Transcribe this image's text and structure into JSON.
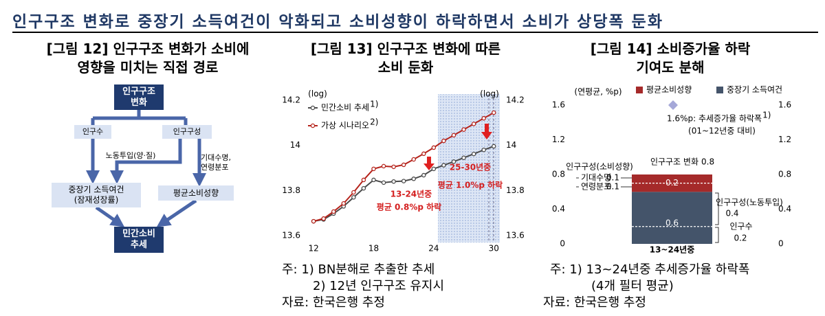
{
  "header": {
    "title": "인구구조 변화로 중장기 소득여건이 악화되고 소비성향이 하락하면서 소비가 상당폭 둔화"
  },
  "diagram": {
    "title": "[그림 12] 인구구조 변화가 소비에\n영향을 미치는 직접 경로",
    "nodes": [
      {
        "label": "인구구조\n변화"
      },
      {
        "label": "인구수"
      },
      {
        "label": "인구구성"
      },
      {
        "label": "노동투입(양·질)"
      },
      {
        "label": "기대수명,\n연령분포"
      },
      {
        "label": "중장기 소득여건\n(잠재성장률)"
      },
      {
        "label": "평균소비성향"
      },
      {
        "label": "민간소비\n추세"
      }
    ]
  },
  "chart_data": [
    {
      "type": "line",
      "title": "[그림 13] 인구구조 변화에 따른\n소비 둔화",
      "y_label": "(log)",
      "y2_label": "(log)",
      "x": [
        12,
        13,
        14,
        15,
        16,
        17,
        18,
        19,
        20,
        21,
        22,
        23,
        24,
        25,
        26,
        27,
        28,
        29,
        30
      ],
      "xlim": [
        11.1,
        30.6
      ],
      "xticks": [
        12,
        18,
        24,
        30
      ],
      "ylim": [
        13.57,
        14.23
      ],
      "yticks": [
        13.6,
        13.8,
        14,
        14.2
      ],
      "y2lim": [
        13.57,
        14.23
      ],
      "y2ticks": [
        13.6,
        13.8,
        14,
        14.2
      ],
      "series": [
        {
          "name": "민간소비 추세",
          "note": "1)",
          "color": "#4a4a4a",
          "values": [
            13.664,
            13.672,
            13.698,
            13.73,
            13.77,
            13.81,
            13.847,
            13.835,
            13.84,
            13.842,
            13.852,
            13.868,
            13.896,
            13.912,
            13.928,
            13.945,
            13.962,
            13.98,
            13.996
          ]
        },
        {
          "name": "가상 시나리오",
          "note": "2)",
          "color": "#b5231b",
          "values": [
            13.664,
            13.676,
            13.707,
            13.743,
            13.792,
            13.847,
            13.896,
            13.908,
            13.905,
            13.914,
            13.938,
            13.963,
            13.99,
            14.02,
            14.045,
            14.07,
            14.095,
            14.12,
            14.145
          ]
        }
      ],
      "annotations": [
        "13-24년중",
        "평균 0.8%p 하락",
        "25-30년중",
        "평균 1.0%p 하락"
      ],
      "notes": [
        "주: 1) BN분해로 추출한 추세",
        "2) 12년 인구구조 유지시"
      ],
      "source": "자료: 한국은행 추정"
    },
    {
      "type": "bar",
      "stacked": true,
      "title": "[그림 14] 소비증가율 하락\n기여도 분해",
      "y_label": "(연평균, %p)",
      "categories": [
        "13~24년중"
      ],
      "ylim": [
        0,
        1.6
      ],
      "yticks": [
        0,
        0.4,
        0.8,
        1.2,
        1.6
      ],
      "y2lim": [
        0,
        1.6
      ],
      "y2ticks": [
        0,
        0.4,
        0.8,
        1.2,
        1.6
      ],
      "series": [
        {
          "name": "평균소비성향",
          "color": "#a52a2a",
          "values": [
            0.2
          ],
          "parts_title": "인구구성(소비성향)",
          "parts": [
            {
              "name": "기대수명",
              "value": 0.1
            },
            {
              "name": "연령분포",
              "value": 0.1
            }
          ]
        },
        {
          "name": "중장기 소득여건",
          "color": "#44546a",
          "values": [
            0.6
          ],
          "parts": [
            {
              "name": "인구수",
              "value": 0.2
            },
            {
              "name": "인구구성(노동투입)",
              "value": 0.4
            }
          ]
        }
      ],
      "total": {
        "label": "인구구조 변화",
        "value": 0.8
      },
      "reference": {
        "value": 1.6,
        "label": "1.6%p: 추세증가율 하락폭",
        "note": "1)",
        "sub": "(01~12년중 대비)",
        "color": "#a5a8d8"
      },
      "notes": [
        "주: 1) 13~24년중 추세증가율 하락폭",
        "(4개 필터 평균)"
      ],
      "source": "자료: 한국은행 추정"
    }
  ]
}
